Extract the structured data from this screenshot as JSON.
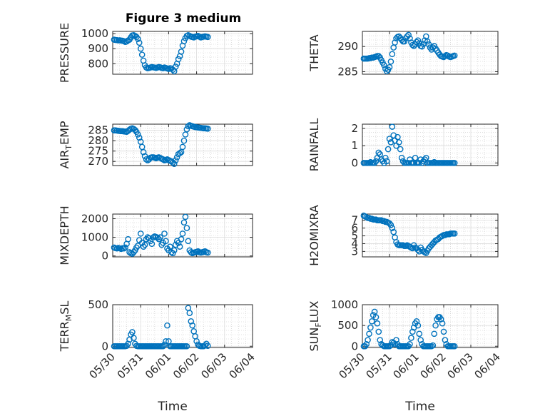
{
  "figure_title": "Figure 3 medium",
  "marker_color": "#0072BD",
  "chart_data": [
    {
      "type": "scatter",
      "ylabel": "PRESSURE",
      "xlabel": "",
      "ylim": [
        730,
        1015
      ],
      "yticks": [
        "800",
        "900",
        "1000"
      ],
      "ytick_values": [
        800,
        900,
        1000
      ],
      "xlim": [
        "05/30",
        "06/04"
      ],
      "grid": true,
      "x": [
        0.05,
        0.1,
        0.15,
        0.2,
        0.25,
        0.3,
        0.35,
        0.4,
        0.45,
        0.5,
        0.55,
        0.6,
        0.65,
        0.7,
        0.75,
        0.8,
        0.85,
        0.9,
        0.95,
        1.0,
        1.05,
        1.1,
        1.15,
        1.2,
        1.25,
        1.3,
        1.35,
        1.4,
        1.45,
        1.5,
        1.55,
        1.6,
        1.65,
        1.7,
        1.75,
        1.8,
        1.85,
        1.9,
        1.95,
        2.0,
        2.05,
        2.1,
        2.15,
        2.2,
        2.25,
        2.3,
        2.35,
        2.4,
        2.45,
        2.5,
        2.55,
        2.6,
        2.65,
        2.7,
        2.75,
        2.8,
        2.85,
        2.9,
        2.95,
        3.0,
        3.05,
        3.1,
        3.15,
        3.2,
        3.25,
        3.3,
        3.35,
        3.4
      ],
      "y": [
        960,
        958,
        957,
        955,
        956,
        954,
        953,
        950,
        945,
        948,
        955,
        960,
        975,
        988,
        990,
        985,
        978,
        965,
        940,
        900,
        860,
        820,
        790,
        775,
        770,
        772,
        775,
        778,
        776,
        774,
        772,
        775,
        778,
        776,
        772,
        770,
        775,
        772,
        768,
        765,
        770,
        768,
        760,
        750,
        780,
        800,
        830,
        850,
        880,
        920,
        950,
        970,
        985,
        990,
        985,
        980,
        978,
        975,
        980,
        982,
        985,
        980,
        975,
        978,
        980,
        982,
        980,
        978
      ],
      "layout_note": ""
    },
    {
      "type": "scatter",
      "ylabel": "THETA",
      "xlabel": "",
      "ylim": [
        284.5,
        293
      ],
      "yticks": [
        "285",
        "290"
      ],
      "ytick_values": [
        285,
        290
      ],
      "xlim": [
        "05/30",
        "06/04"
      ],
      "grid": true,
      "x": [
        0.05,
        0.1,
        0.15,
        0.2,
        0.25,
        0.3,
        0.35,
        0.4,
        0.45,
        0.5,
        0.55,
        0.6,
        0.65,
        0.7,
        0.75,
        0.8,
        0.85,
        0.9,
        0.95,
        1.0,
        1.05,
        1.1,
        1.15,
        1.2,
        1.25,
        1.3,
        1.35,
        1.4,
        1.45,
        1.5,
        1.55,
        1.6,
        1.65,
        1.7,
        1.75,
        1.8,
        1.85,
        1.9,
        1.95,
        2.0,
        2.05,
        2.1,
        2.15,
        2.2,
        2.25,
        2.3,
        2.35,
        2.4,
        2.45,
        2.5,
        2.55,
        2.6,
        2.65,
        2.7,
        2.75,
        2.8,
        2.85,
        2.9,
        2.95,
        3.0,
        3.05,
        3.1,
        3.15,
        3.2,
        3.25,
        3.3,
        3.35,
        3.4
      ],
      "y": [
        287.6,
        287.6,
        287.6,
        287.6,
        287.7,
        287.7,
        287.8,
        287.8,
        287.9,
        288.0,
        288.1,
        288.1,
        287.8,
        287.3,
        286.8,
        286.3,
        285.6,
        285.1,
        285.4,
        285.9,
        287.0,
        288.5,
        289.8,
        290.8,
        291.6,
        291.9,
        292.0,
        291.7,
        291.3,
        291.0,
        291.0,
        291.6,
        292.0,
        292.3,
        291.6,
        290.8,
        290.3,
        290.1,
        290.4,
        290.9,
        291.2,
        290.6,
        290.1,
        290.0,
        290.5,
        291.2,
        292.0,
        291.0,
        290.4,
        289.8,
        289.4,
        289.8,
        290.1,
        289.6,
        289.2,
        288.8,
        288.4,
        288.1,
        288.0,
        287.9,
        288.1,
        288.3,
        288.2,
        288.0,
        287.9,
        288.0,
        288.1,
        288.2
      ],
      "layout_note": ""
    },
    {
      "type": "scatter",
      "ylabel": "AIR_TEMP",
      "xlabel": "",
      "ylim": [
        268,
        288
      ],
      "yticks": [
        "270",
        "275",
        "280",
        "285"
      ],
      "ytick_values": [
        270,
        275,
        280,
        285
      ],
      "xlim": [
        "05/30",
        "06/04"
      ],
      "grid": true,
      "x": [
        0.05,
        0.1,
        0.15,
        0.2,
        0.25,
        0.3,
        0.35,
        0.4,
        0.45,
        0.5,
        0.55,
        0.6,
        0.65,
        0.7,
        0.75,
        0.8,
        0.85,
        0.9,
        0.95,
        1.0,
        1.05,
        1.1,
        1.15,
        1.2,
        1.25,
        1.3,
        1.35,
        1.4,
        1.45,
        1.5,
        1.55,
        1.6,
        1.65,
        1.7,
        1.75,
        1.8,
        1.85,
        1.9,
        1.95,
        2.0,
        2.05,
        2.1,
        2.15,
        2.2,
        2.25,
        2.3,
        2.35,
        2.4,
        2.45,
        2.5,
        2.55,
        2.6,
        2.65,
        2.7,
        2.75,
        2.8,
        2.85,
        2.9,
        2.95,
        3.0,
        3.05,
        3.1,
        3.15,
        3.2,
        3.25,
        3.3,
        3.35,
        3.4
      ],
      "y": [
        285.0,
        285.0,
        284.9,
        284.8,
        284.7,
        284.6,
        284.6,
        284.5,
        284.4,
        284.3,
        284.8,
        285.3,
        285.8,
        286.0,
        285.7,
        285.2,
        284.3,
        283.0,
        281.5,
        279.5,
        277.0,
        274.5,
        272.5,
        271.0,
        270.5,
        271.0,
        271.8,
        272.0,
        272.0,
        271.8,
        271.5,
        271.8,
        272.0,
        271.7,
        271.3,
        271.0,
        270.5,
        270.7,
        271.0,
        270.6,
        270.3,
        270.0,
        269.5,
        268.8,
        270.5,
        272.0,
        273.5,
        274.0,
        274.5,
        277.0,
        280.0,
        283.0,
        285.5,
        287.0,
        287.5,
        287.2,
        287.0,
        286.8,
        286.6,
        286.5,
        286.4,
        286.3,
        286.2,
        286.1,
        286.0,
        286.0,
        285.9,
        285.8
      ],
      "layout_note": ""
    },
    {
      "type": "scatter",
      "ylabel": "RAINFALL",
      "xlabel": "",
      "ylim": [
        -0.15,
        2.25
      ],
      "yticks": [
        "0",
        "1",
        "2"
      ],
      "ytick_values": [
        0,
        1,
        2
      ],
      "xlim": [
        "05/30",
        "06/04"
      ],
      "grid": true,
      "x": [
        0.05,
        0.1,
        0.15,
        0.2,
        0.25,
        0.3,
        0.35,
        0.4,
        0.45,
        0.5,
        0.55,
        0.6,
        0.65,
        0.7,
        0.75,
        0.8,
        0.85,
        0.9,
        0.95,
        1.0,
        1.05,
        1.1,
        1.15,
        1.2,
        1.25,
        1.3,
        1.35,
        1.4,
        1.45,
        1.5,
        1.55,
        1.6,
        1.65,
        1.7,
        1.75,
        1.8,
        1.85,
        1.9,
        1.95,
        2.0,
        2.05,
        2.1,
        2.15,
        2.2,
        2.25,
        2.3,
        2.35,
        2.4,
        2.45,
        2.5,
        2.55,
        2.6,
        2.65,
        2.7,
        2.75,
        2.8,
        2.85,
        2.9,
        2.95,
        3.0,
        3.05,
        3.1,
        3.15,
        3.2,
        3.25,
        3.3,
        3.35,
        3.4
      ],
      "y": [
        0,
        0,
        0,
        0,
        0,
        0.05,
        0,
        0,
        0,
        0.1,
        0.3,
        0.6,
        0.5,
        0.2,
        0.1,
        0,
        0.3,
        0.1,
        0.8,
        1.4,
        1.2,
        2.1,
        1.6,
        1.3,
        1.0,
        1.5,
        1.2,
        0.8,
        0.3,
        0.1,
        0,
        0,
        0,
        0,
        0.2,
        0,
        0,
        0,
        0.3,
        0,
        0,
        0,
        0.2,
        0,
        0.1,
        0.2,
        0.3,
        0,
        0,
        0,
        0,
        0,
        0.05,
        0,
        0,
        0,
        0,
        0,
        0,
        0,
        0,
        0,
        0,
        0,
        0,
        0,
        0,
        0
      ],
      "layout_note": ""
    },
    {
      "type": "scatter",
      "ylabel": "MIXDEPTH",
      "xlabel": "",
      "ylim": [
        -50,
        2250
      ],
      "yticks": [
        "0",
        "1000",
        "2000"
      ],
      "ytick_values": [
        0,
        1000,
        2000
      ],
      "xlim": [
        "05/30",
        "06/04"
      ],
      "grid": true,
      "x": [
        0.05,
        0.1,
        0.15,
        0.2,
        0.25,
        0.3,
        0.35,
        0.4,
        0.45,
        0.5,
        0.55,
        0.6,
        0.65,
        0.7,
        0.75,
        0.8,
        0.85,
        0.9,
        0.95,
        1.0,
        1.05,
        1.1,
        1.15,
        1.2,
        1.25,
        1.3,
        1.35,
        1.4,
        1.45,
        1.5,
        1.55,
        1.6,
        1.65,
        1.7,
        1.75,
        1.8,
        1.85,
        1.9,
        1.95,
        2.0,
        2.05,
        2.1,
        2.15,
        2.2,
        2.25,
        2.3,
        2.35,
        2.4,
        2.45,
        2.5,
        2.55,
        2.6,
        2.65,
        2.7,
        2.75,
        2.8,
        2.85,
        2.9,
        2.95,
        3.0,
        3.05,
        3.1,
        3.15,
        3.2,
        3.25,
        3.3,
        3.35,
        3.4
      ],
      "y": [
        450,
        420,
        400,
        430,
        410,
        380,
        420,
        400,
        450,
        650,
        900,
        200,
        150,
        120,
        200,
        300,
        450,
        550,
        850,
        1200,
        700,
        500,
        600,
        900,
        1000,
        950,
        800,
        650,
        1000,
        1050,
        1020,
        980,
        900,
        1000,
        600,
        700,
        1200,
        800,
        400,
        300,
        500,
        200,
        150,
        300,
        600,
        800,
        700,
        500,
        900,
        1200,
        1800,
        2100,
        1500,
        800,
        300,
        200,
        150,
        180,
        200,
        220,
        250,
        200,
        180,
        200,
        220,
        250,
        200,
        180
      ],
      "layout_note": ""
    },
    {
      "type": "scatter",
      "ylabel": "H2OMIXRA",
      "xlabel": "",
      "ylim": [
        2.3,
        7.8
      ],
      "yticks": [
        "3",
        "4",
        "5",
        "6",
        "7"
      ],
      "ytick_values": [
        3,
        4,
        5,
        6,
        7
      ],
      "xlim": [
        "05/30",
        "06/04"
      ],
      "grid": true,
      "x": [
        0.05,
        0.1,
        0.15,
        0.2,
        0.25,
        0.3,
        0.35,
        0.4,
        0.45,
        0.5,
        0.55,
        0.6,
        0.65,
        0.7,
        0.75,
        0.8,
        0.85,
        0.9,
        0.95,
        1.0,
        1.05,
        1.1,
        1.15,
        1.2,
        1.25,
        1.3,
        1.35,
        1.4,
        1.45,
        1.5,
        1.55,
        1.6,
        1.65,
        1.7,
        1.75,
        1.8,
        1.85,
        1.9,
        1.95,
        2.0,
        2.05,
        2.1,
        2.15,
        2.2,
        2.25,
        2.3,
        2.35,
        2.4,
        2.45,
        2.5,
        2.55,
        2.6,
        2.65,
        2.7,
        2.75,
        2.8,
        2.85,
        2.9,
        2.95,
        3.0,
        3.05,
        3.1,
        3.15,
        3.2,
        3.25,
        3.3,
        3.35,
        3.4
      ],
      "y": [
        7.6,
        7.5,
        7.4,
        7.3,
        7.3,
        7.2,
        7.2,
        7.1,
        7.1,
        7.1,
        7.0,
        7.0,
        7.0,
        7.0,
        6.9,
        6.9,
        6.8,
        6.8,
        6.7,
        6.6,
        6.4,
        6.0,
        5.5,
        4.8,
        4.2,
        3.9,
        3.8,
        3.8,
        3.8,
        3.8,
        3.7,
        3.7,
        3.8,
        3.7,
        3.6,
        3.5,
        3.4,
        3.8,
        3.5,
        3.4,
        3.2,
        3.0,
        3.5,
        3.2,
        3.0,
        2.9,
        2.8,
        3.1,
        3.4,
        3.6,
        3.8,
        4.0,
        4.2,
        4.4,
        4.5,
        4.6,
        4.8,
        4.9,
        5.0,
        5.1,
        5.1,
        5.2,
        5.2,
        5.2,
        5.3,
        5.3,
        5.3,
        5.3
      ],
      "layout_note": ""
    },
    {
      "type": "scatter",
      "ylabel": "TERR_MSL",
      "xlabel": "Time",
      "ylim": [
        -15,
        500
      ],
      "yticks": [
        "0",
        "500"
      ],
      "ytick_values": [
        0,
        500
      ],
      "xlim": [
        "05/30",
        "06/04"
      ],
      "xticks": [
        "05/30",
        "05/31",
        "06/01",
        "06/02",
        "06/03",
        "06/04"
      ],
      "grid": true,
      "x": [
        0.05,
        0.1,
        0.15,
        0.2,
        0.25,
        0.3,
        0.35,
        0.4,
        0.45,
        0.5,
        0.55,
        0.6,
        0.65,
        0.7,
        0.75,
        0.8,
        0.85,
        0.9,
        0.95,
        1.0,
        1.05,
        1.1,
        1.15,
        1.2,
        1.25,
        1.3,
        1.35,
        1.4,
        1.45,
        1.5,
        1.55,
        1.6,
        1.65,
        1.7,
        1.75,
        1.8,
        1.85,
        1.9,
        1.95,
        2.0,
        2.05,
        2.1,
        2.15,
        2.2,
        2.25,
        2.3,
        2.35,
        2.4,
        2.45,
        2.5,
        2.55,
        2.6,
        2.65,
        2.7,
        2.75,
        2.8,
        2.85,
        2.9,
        2.95,
        3.0,
        3.05,
        3.1,
        3.15,
        3.2,
        3.25,
        3.3,
        3.35,
        3.4
      ],
      "y": [
        0,
        0,
        0,
        0,
        0,
        0,
        0,
        0,
        0,
        5,
        30,
        80,
        140,
        170,
        100,
        30,
        5,
        0,
        0,
        0,
        0,
        0,
        0,
        0,
        0,
        0,
        0,
        0,
        0,
        0,
        0,
        0,
        0,
        0,
        0,
        0,
        20,
        60,
        250,
        60,
        0,
        0,
        0,
        0,
        0,
        0,
        0,
        0,
        0,
        0,
        0,
        0,
        0,
        460,
        400,
        300,
        250,
        180,
        120,
        60,
        20,
        5,
        0,
        0,
        0,
        10,
        30,
        5
      ],
      "layout_note": ""
    },
    {
      "type": "scatter",
      "ylabel": "SUN_FLUX",
      "xlabel": "Time",
      "ylim": [
        -30,
        1000
      ],
      "yticks": [
        "0",
        "500",
        "1000"
      ],
      "ytick_values": [
        0,
        500,
        1000
      ],
      "xlim": [
        "05/30",
        "06/04"
      ],
      "xticks": [
        "05/30",
        "05/31",
        "06/01",
        "06/02",
        "06/03",
        "06/04"
      ],
      "grid": true,
      "x": [
        0.05,
        0.1,
        0.15,
        0.2,
        0.25,
        0.3,
        0.35,
        0.4,
        0.45,
        0.5,
        0.55,
        0.6,
        0.65,
        0.7,
        0.75,
        0.8,
        0.85,
        0.9,
        0.95,
        1.0,
        1.05,
        1.1,
        1.15,
        1.2,
        1.25,
        1.3,
        1.35,
        1.4,
        1.45,
        1.5,
        1.55,
        1.6,
        1.65,
        1.7,
        1.75,
        1.8,
        1.85,
        1.9,
        1.95,
        2.0,
        2.05,
        2.1,
        2.15,
        2.2,
        2.25,
        2.3,
        2.35,
        2.4,
        2.45,
        2.5,
        2.55,
        2.6,
        2.65,
        2.7,
        2.75,
        2.8,
        2.85,
        2.9,
        2.95,
        3.0,
        3.05,
        3.1,
        3.15,
        3.2,
        3.25,
        3.3,
        3.35,
        3.4
      ],
      "y": [
        0,
        0,
        50,
        150,
        300,
        450,
        600,
        750,
        830,
        700,
        550,
        350,
        150,
        50,
        20,
        0,
        0,
        0,
        0,
        0,
        30,
        100,
        80,
        50,
        150,
        50,
        0,
        0,
        0,
        0,
        0,
        0,
        0,
        0,
        50,
        200,
        350,
        450,
        550,
        600,
        500,
        300,
        150,
        50,
        0,
        0,
        0,
        0,
        0,
        0,
        0,
        20,
        300,
        500,
        650,
        700,
        700,
        650,
        550,
        350,
        150,
        50,
        0,
        0,
        0,
        0,
        0,
        0
      ],
      "layout_note": ""
    }
  ]
}
